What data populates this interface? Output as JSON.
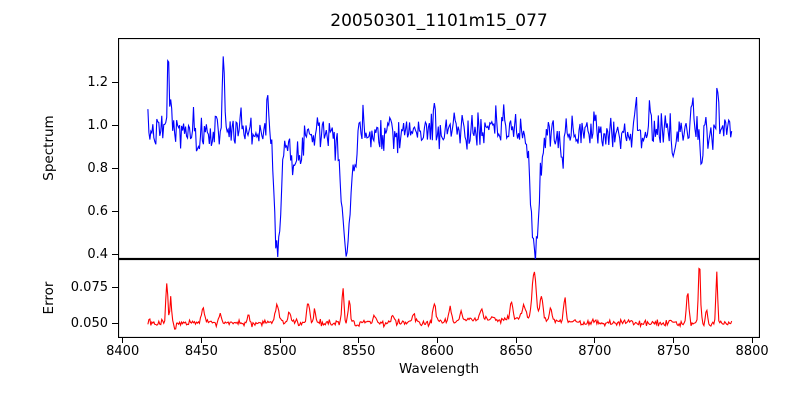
{
  "title": "20050301_1101m15_077",
  "axes": {
    "xlabel": "Wavelength",
    "spectrum_ylabel": "Spectrum",
    "error_ylabel": "Error"
  },
  "chart_data": [
    {
      "type": "line",
      "name": "spectrum",
      "title": "20050301_1101m15_077",
      "ylabel": "Spectrum",
      "line_color": "#0000ff",
      "grid": false,
      "legend": "none",
      "xlim": [
        8397,
        8805
      ],
      "ylim": [
        0.381,
        1.404
      ],
      "yticks": [
        {
          "value": 0.4,
          "label": "0.4"
        },
        {
          "value": 0.6,
          "label": "0.6"
        },
        {
          "value": 0.8,
          "label": "0.8"
        },
        {
          "value": 1.0,
          "label": "1.0"
        },
        {
          "value": 1.2,
          "label": "1.2"
        }
      ],
      "xticks": [],
      "signal": {
        "x_start": 8416,
        "x_end": 8787,
        "n_points": 590,
        "seed": 7,
        "baseline": 0.97,
        "noise_sigma": 0.038,
        "comment_features": "each feature = [center_wavelength, amplitude, gaussian_sigma]; deep absorptions are the Ca II triplet at 8498/8542/8662",
        "features": [
          [
            8429,
            0.33,
            0.7
          ],
          [
            8431,
            0.12,
            0.5
          ],
          [
            8448,
            -0.13,
            0.9
          ],
          [
            8464,
            0.38,
            0.7
          ],
          [
            8475,
            0.1,
            0.6
          ],
          [
            8492,
            0.2,
            0.6
          ],
          [
            8498.3,
            -0.52,
            2.0
          ],
          [
            8509,
            -0.17,
            3.2
          ],
          [
            8524,
            0.08,
            0.6
          ],
          [
            8542.1,
            -0.55,
            2.6
          ],
          [
            8548,
            -0.1,
            1.0
          ],
          [
            8570,
            0.08,
            0.6
          ],
          [
            8598,
            0.11,
            0.7
          ],
          [
            8611,
            0.09,
            0.6
          ],
          [
            8642,
            0.13,
            0.6
          ],
          [
            8662.1,
            -0.55,
            2.6
          ],
          [
            8679,
            -0.16,
            1.2
          ],
          [
            8700,
            0.09,
            0.6
          ],
          [
            8726,
            0.1,
            0.6
          ],
          [
            8735,
            0.11,
            0.6
          ],
          [
            8750,
            -0.12,
            0.9
          ],
          [
            8762,
            0.16,
            0.7
          ],
          [
            8768,
            -0.13,
            0.7
          ],
          [
            8778,
            0.25,
            0.6
          ]
        ]
      }
    },
    {
      "type": "line",
      "name": "error",
      "ylabel": "Error",
      "xlabel": "Wavelength",
      "line_color": "#ff0000",
      "grid": false,
      "legend": "none",
      "xlim": [
        8397,
        8805
      ],
      "ylim": [
        0.0405,
        0.0939
      ],
      "yticks": [
        {
          "value": 0.05,
          "label": "0.050"
        },
        {
          "value": 0.075,
          "label": "0.075"
        }
      ],
      "xticks": [
        {
          "value": 8400,
          "label": "8400"
        },
        {
          "value": 8450,
          "label": "8450"
        },
        {
          "value": 8500,
          "label": "8500"
        },
        {
          "value": 8550,
          "label": "8550"
        },
        {
          "value": 8600,
          "label": "8600"
        },
        {
          "value": 8650,
          "label": "8650"
        },
        {
          "value": 8700,
          "label": "8700"
        },
        {
          "value": 8750,
          "label": "8750"
        },
        {
          "value": 8800,
          "label": "8800"
        }
      ],
      "signal": {
        "x_start": 8416,
        "x_end": 8787,
        "n_points": 590,
        "seed": 13,
        "baseline": 0.0505,
        "noise_sigma": 0.0011,
        "comment_features": "each feature = [center_wavelength, amplitude, gaussian_sigma]; error bumps track spectral features",
        "features": [
          [
            8428,
            0.03,
            0.6
          ],
          [
            8430.5,
            0.018,
            0.5
          ],
          [
            8433,
            -0.004,
            0.6
          ],
          [
            8451,
            0.011,
            0.8
          ],
          [
            8462,
            0.007,
            0.8
          ],
          [
            8480,
            0.005,
            0.8
          ],
          [
            8498,
            0.012,
            1.2
          ],
          [
            8506,
            0.007,
            1.0
          ],
          [
            8518,
            0.014,
            1.0
          ],
          [
            8522,
            0.009,
            0.7
          ],
          [
            8540,
            0.024,
            0.7
          ],
          [
            8544,
            0.016,
            0.7
          ],
          [
            8560,
            0.005,
            0.9
          ],
          [
            8572,
            0.005,
            0.9
          ],
          [
            8585,
            0.006,
            0.9
          ],
          [
            8598,
            0.012,
            0.9
          ],
          [
            8608,
            0.01,
            0.8
          ],
          [
            8615,
            0.007,
            0.8
          ],
          [
            8628,
            0.007,
            0.9
          ],
          [
            8640,
            0.003,
            25
          ],
          [
            8647,
            0.011,
            0.8
          ],
          [
            8655,
            0.01,
            1.2
          ],
          [
            8661.5,
            0.033,
            1.3
          ],
          [
            8666,
            0.016,
            1.0
          ],
          [
            8672,
            0.008,
            1.0
          ],
          [
            8681,
            0.015,
            0.8
          ],
          [
            8759,
            0.022,
            0.7
          ],
          [
            8766.5,
            0.04,
            0.7
          ],
          [
            8771,
            0.01,
            0.6
          ],
          [
            8777.5,
            0.033,
            0.6
          ]
        ]
      }
    }
  ],
  "layout_colors": {
    "frame": "#000000",
    "background": "#ffffff",
    "spectrum_line": "#0000ff",
    "error_line": "#ff0000"
  }
}
